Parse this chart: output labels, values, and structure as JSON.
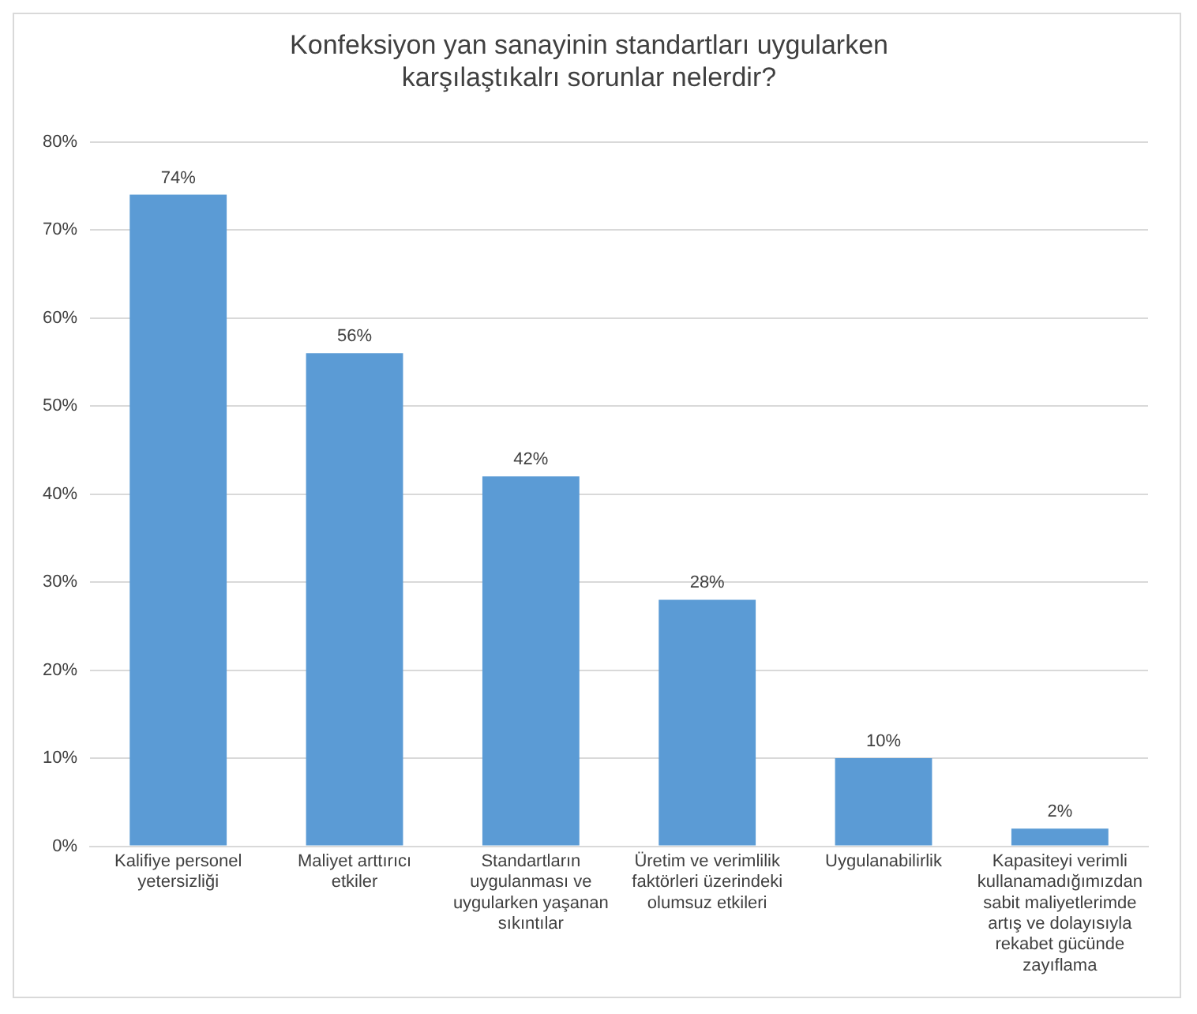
{
  "chart_data": {
    "type": "bar",
    "title": "Konfeksiyon yan sanayinin standartları uygularken karşılaştıkalrı sorunlar nelerdir?",
    "categories": [
      "Kalifiye personel yetersizliği",
      "Maliyet arttırıcı etkiler",
      "Standartların uygulanması ve uygularken yaşanan sıkıntılar",
      "Üretim ve verimlilik faktörleri üzerindeki olumsuz etkileri",
      "Uygulanabilirlik",
      "Kapasiteyi verimli kullanamadığımızdan sabit maliyetlerimde artış ve dolayısıyla rekabet gücünde zayıflama"
    ],
    "values": [
      74,
      56,
      42,
      28,
      10,
      2
    ],
    "value_labels": [
      "74%",
      "56%",
      "42%",
      "28%",
      "10%",
      "2%"
    ],
    "color": "#5b9bd5",
    "ylim": [
      0,
      80
    ],
    "yticks": [
      {
        "value": 0,
        "label": "0%"
      },
      {
        "value": 10,
        "label": "10%"
      },
      {
        "value": 20,
        "label": "20%"
      },
      {
        "value": 30,
        "label": "30%"
      },
      {
        "value": 40,
        "label": "40%"
      },
      {
        "value": 50,
        "label": "50%"
      },
      {
        "value": 60,
        "label": "60%"
      },
      {
        "value": 70,
        "label": "70%"
      },
      {
        "value": 80,
        "label": "80%"
      }
    ],
    "grid": "y"
  }
}
